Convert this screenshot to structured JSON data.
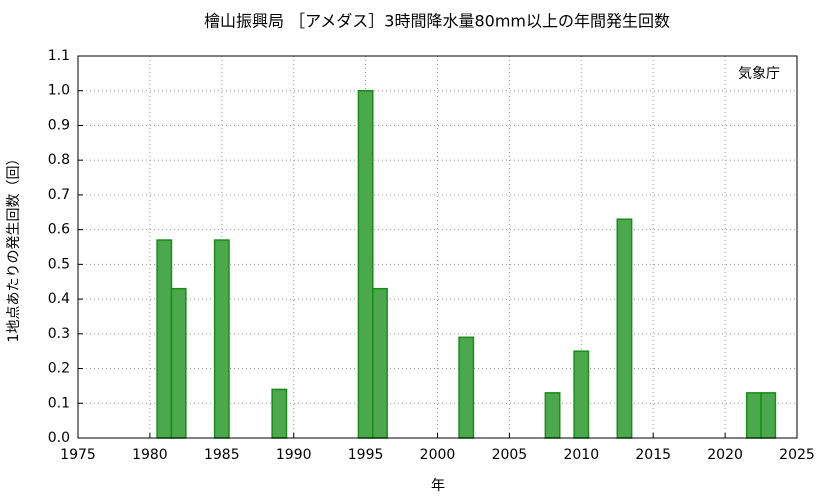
{
  "chart_data": {
    "type": "bar",
    "title": "檜山振興局 ［アメダス］3時間降水量80mm以上の年間発生回数",
    "x_label": "年",
    "y_label": "1地点あたりの発生回数（回）",
    "annotation": "気象庁",
    "x": [
      1981,
      1982,
      1985,
      1989,
      1995,
      1996,
      2002,
      2008,
      2010,
      2013,
      2022,
      2023
    ],
    "values": [
      0.57,
      0.43,
      0.57,
      0.14,
      1.0,
      0.43,
      0.29,
      0.13,
      0.25,
      0.63,
      0.13,
      0.13
    ],
    "color": "#4ca84c",
    "edge_color": "#1a8c1a",
    "xlim": [
      1975,
      2025
    ],
    "xticks": [
      1975,
      1980,
      1985,
      1990,
      1995,
      2000,
      2005,
      2010,
      2015,
      2020,
      2025
    ],
    "ylim": [
      0,
      1.1
    ],
    "yticks": [
      {
        "value": 0,
        "label": "0.0"
      },
      0.1,
      0.2,
      0.3,
      0.4,
      0.5,
      0.6,
      0.7,
      0.8,
      0.9,
      {
        "value": 1,
        "label": "1.0"
      },
      1.1
    ],
    "grid": true
  }
}
